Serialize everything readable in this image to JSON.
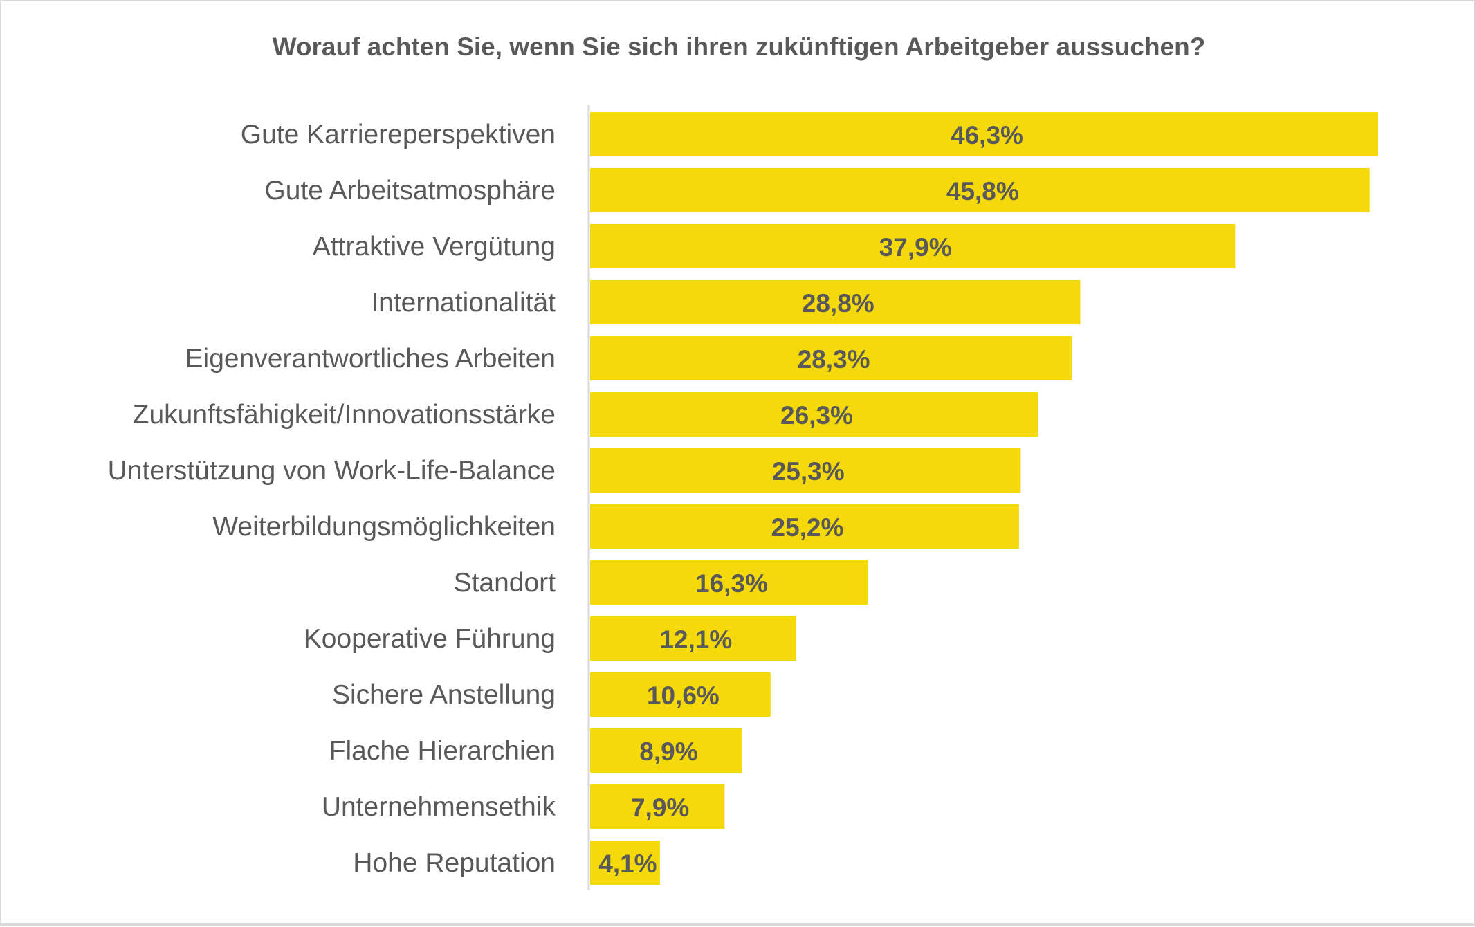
{
  "chart_data": {
    "type": "bar",
    "orientation": "horizontal",
    "title": "Worauf achten Sie, wenn Sie sich ihren zukünftigen Arbeitgeber aussuchen?",
    "xlabel": "",
    "ylabel": "",
    "categories": [
      "Gute Karriereperspektiven",
      "Gute Arbeitsatmosphäre",
      "Attraktive Vergütung",
      "Internationalität",
      "Eigenverantwortliches Arbeiten",
      "Zukunftsfähigkeit/Innovationsstärke",
      "Unterstützung von Work-Life-Balance",
      "Weiterbildungsmöglichkeiten",
      "Standort",
      "Kooperative Führung",
      "Sichere Anstellung",
      "Flache Hierarchien",
      "Unternehmensethik",
      "Hohe Reputation"
    ],
    "values": [
      46.3,
      45.8,
      37.9,
      28.8,
      28.3,
      26.3,
      25.3,
      25.2,
      16.3,
      12.1,
      10.6,
      8.9,
      7.9,
      4.1
    ],
    "data_labels": [
      "46,3%",
      "45,8%",
      "37,9%",
      "28,8%",
      "28,3%",
      "26,3%",
      "25,3%",
      "25,2%",
      "16,3%",
      "12,1%",
      "10,6%",
      "8,9%",
      "7,9%",
      "4,1%"
    ],
    "xlim": [
      0,
      46.3
    ],
    "grid": false,
    "legend": "none",
    "bar_color": "#f5d90a",
    "text_color": "#595959",
    "axis_color": "#d9d9d9"
  }
}
